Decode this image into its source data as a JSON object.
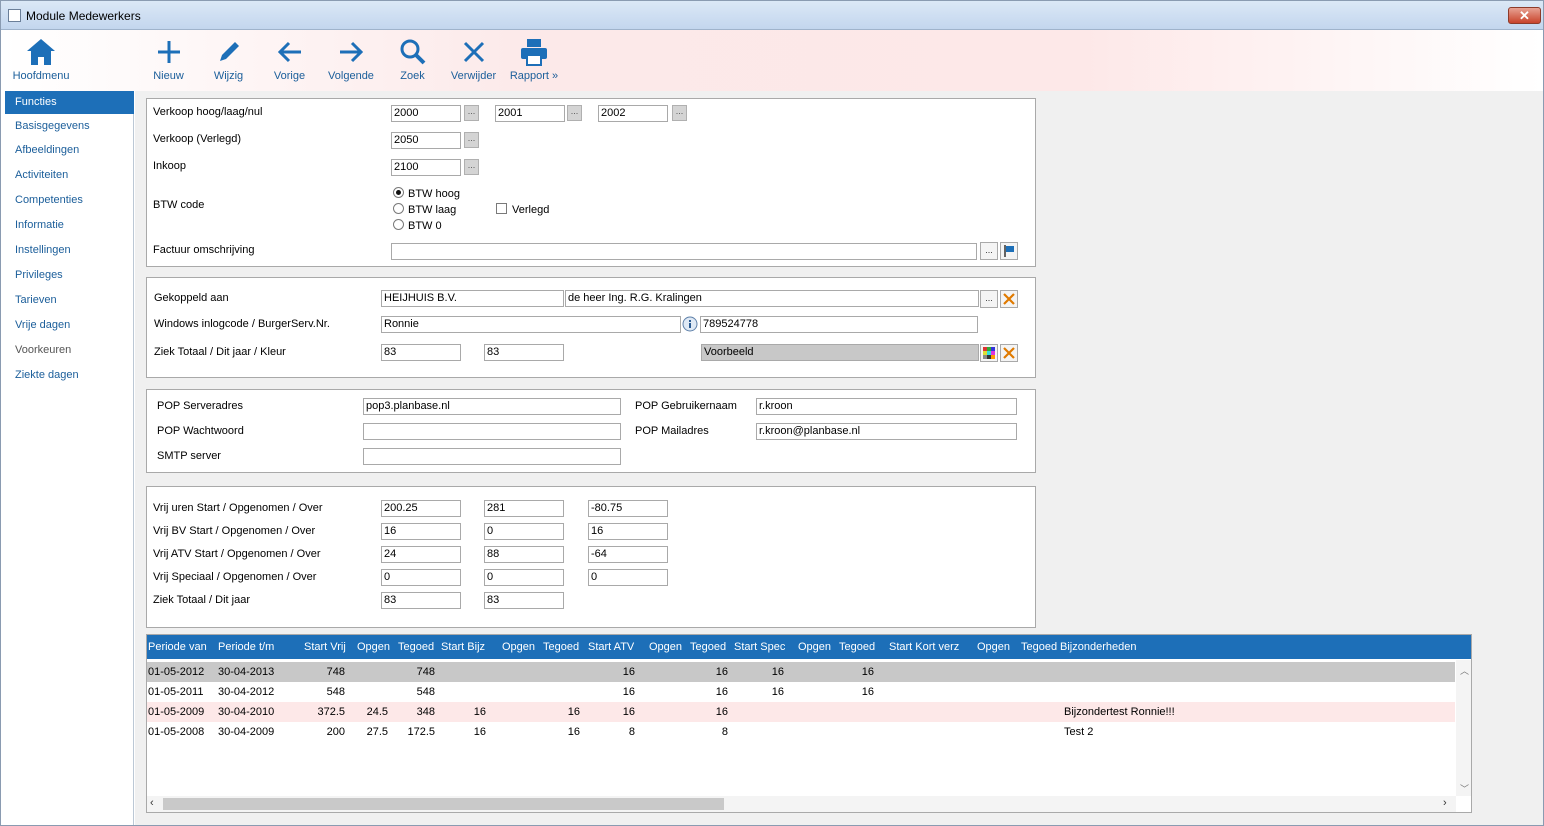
{
  "window": {
    "title": "Module Medewerkers",
    "close": "✕"
  },
  "toolbar": {
    "home": "Hoofdmenu",
    "nieuw": "Nieuw",
    "wijzig": "Wijzig",
    "vorige": "Vorige",
    "volgende": "Volgende",
    "zoek": "Zoek",
    "verwijder": "Verwijder",
    "rapport": "Rapport »"
  },
  "sidebar": {
    "items": [
      "Functies",
      "Basisgegevens",
      "Afbeeldingen",
      "Activiteiten",
      "Competenties",
      "Informatie",
      "Instellingen",
      "Privileges",
      "Tarieven",
      "Vrije dagen",
      "Voorkeuren",
      "Ziekte dagen"
    ]
  },
  "sales": {
    "verkoop_label": "Verkoop hoog/laag/nul",
    "verkoop_hoog": "2000",
    "verkoop_laag": "2001",
    "verkoop_nul": "2002",
    "verlegd_label": "Verkoop (Verlegd)",
    "verlegd_value": "2050",
    "inkoop_label": "Inkoop",
    "inkoop_value": "2100",
    "btw_label": "BTW code",
    "btw_hoog": "BTW hoog",
    "btw_laag": "BTW laag",
    "btw_0": "BTW 0",
    "btw_selected": "BTW hoog",
    "verlegd_check": "Verlegd",
    "factuur_label": "Factuur omschrijving",
    "factuur_value": "",
    "dots": "..."
  },
  "link": {
    "gekoppeld_label": "Gekoppeld aan",
    "company": "HEIJHUIS B.V.",
    "contact": "de heer Ing. R.G. Kralingen",
    "windows_label": "Windows inlogcode / BurgerServ.Nr.",
    "login": "Ronnie",
    "bsn": "789524778",
    "ziek_label": "Ziek Totaal / Dit jaar / Kleur",
    "ziek_totaal": "83",
    "ziek_jaar": "83",
    "kleur": "Voorbeeld"
  },
  "mail": {
    "server_label": "POP Serveradres",
    "server": "pop3.planbase.nl",
    "pw_label": "POP Wachtwoord",
    "pw": "",
    "smtp_label": "SMTP server",
    "smtp": "",
    "user_label": "POP Gebruikernaam",
    "user": "r.kroon",
    "mail_label": "POP Mailadres",
    "mail": "r.kroon@planbase.nl"
  },
  "vrij": {
    "uren_label": "Vrij uren Start / Opgenomen / Over",
    "uren": [
      "200.25",
      "281",
      "-80.75"
    ],
    "bv_label": "Vrij BV Start / Opgenomen / Over",
    "bv": [
      "16",
      "0",
      "16"
    ],
    "atv_label": "Vrij ATV Start / Opgenomen / Over",
    "atv": [
      "24",
      "88",
      "-64"
    ],
    "spec_label": "Vrij Speciaal / Opgenomen / Over",
    "spec": [
      "0",
      "0",
      "0"
    ],
    "ziek_label": "Ziek Totaal / Dit jaar",
    "ziek": [
      "83",
      "83"
    ]
  },
  "table": {
    "headers": [
      "Periode van",
      "Periode t/m",
      "Start Vrij",
      "Opgen",
      "Tegoed",
      "Start Bijz",
      "Opgen",
      "Tegoed",
      "Start ATV",
      "Opgen",
      "Tegoed",
      "Start Spec",
      "Opgen",
      "Tegoed",
      "Start Kort verz",
      "Opgen",
      "Tegoed",
      "Bijzonderheden"
    ],
    "rows": [
      [
        "01-05-2012",
        "30-04-2013",
        "748",
        "",
        "748",
        "",
        "",
        "",
        "16",
        "",
        "16",
        "16",
        "",
        "16",
        "",
        "",
        "",
        ""
      ],
      [
        "01-05-2011",
        "30-04-2012",
        "548",
        "",
        "548",
        "",
        "",
        "",
        "16",
        "",
        "16",
        "16",
        "",
        "16",
        "",
        "",
        "",
        ""
      ],
      [
        "01-05-2009",
        "30-04-2010",
        "372.5",
        "24.5",
        "348",
        "16",
        "",
        "16",
        "16",
        "",
        "16",
        "",
        "",
        "",
        "",
        "",
        "",
        "Bijzondertest Ronnie!!!"
      ],
      [
        "01-05-2008",
        "30-04-2009",
        "200",
        "27.5",
        "172.5",
        "16",
        "",
        "16",
        "8",
        "",
        "8",
        "",
        "",
        "",
        "",
        "",
        "",
        "Test 2"
      ]
    ],
    "row_colors": [
      "#c8c8c8",
      "#ffffff",
      "#fde8e8",
      "#ffffff"
    ]
  }
}
